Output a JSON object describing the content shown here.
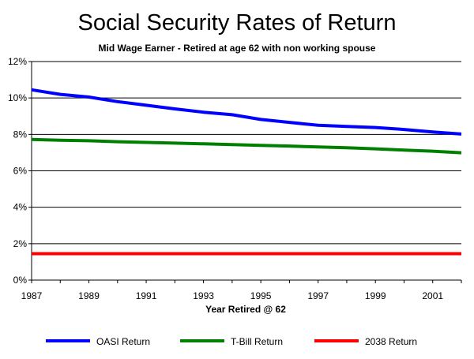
{
  "chart_data": {
    "type": "line",
    "title": "Social Security Rates of Return",
    "subtitle": "Mid Wage Earner - Retired at age 62 with non working spouse",
    "xlabel": "Year Retired @ 62",
    "ylabel": "",
    "x": [
      1987,
      1988,
      1989,
      1990,
      1991,
      1992,
      1993,
      1994,
      1995,
      1996,
      1997,
      1998,
      1999,
      2000,
      2001,
      2002
    ],
    "xlim": [
      1987,
      2002
    ],
    "ylim": [
      0,
      12
    ],
    "x_ticks": [
      "1987",
      "1989",
      "1991",
      "1993",
      "1995",
      "1997",
      "1999",
      "2001"
    ],
    "y_ticks": [
      "0%",
      "2%",
      "4%",
      "6%",
      "8%",
      "10%",
      "12%"
    ],
    "grid": "horizontal",
    "legend_position": "bottom",
    "series": [
      {
        "name": "OASI Return",
        "color": "#0000ff",
        "values": [
          10.45,
          10.2,
          10.05,
          9.8,
          9.6,
          9.4,
          9.22,
          9.08,
          8.82,
          8.66,
          8.5,
          8.44,
          8.38,
          8.27,
          8.13,
          8.02
        ]
      },
      {
        "name": "T-Bill Return",
        "color": "#008000",
        "values": [
          7.72,
          7.68,
          7.65,
          7.6,
          7.56,
          7.52,
          7.48,
          7.44,
          7.4,
          7.36,
          7.31,
          7.27,
          7.21,
          7.14,
          7.08,
          6.99
        ]
      },
      {
        "name": "2038 Return",
        "color": "#ff0000",
        "values": [
          1.45,
          1.45,
          1.45,
          1.45,
          1.45,
          1.45,
          1.45,
          1.45,
          1.45,
          1.45,
          1.45,
          1.45,
          1.45,
          1.45,
          1.45,
          1.45
        ]
      }
    ]
  }
}
